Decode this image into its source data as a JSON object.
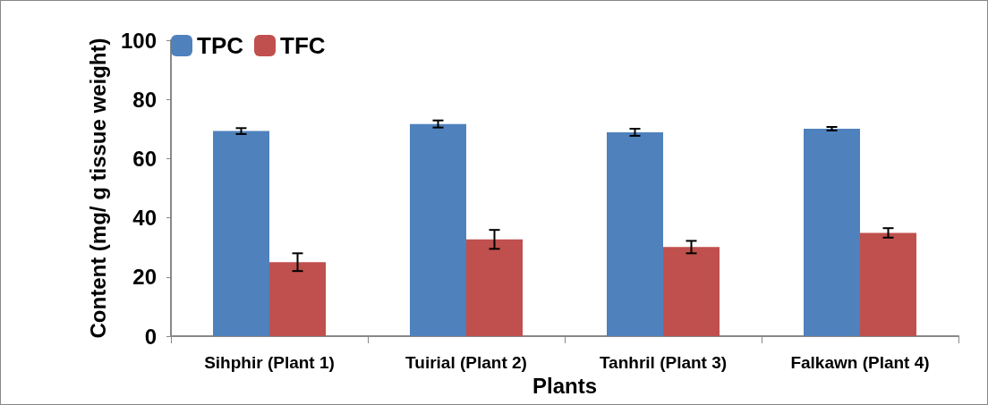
{
  "chart_data": {
    "type": "bar",
    "xlabel": "Plants",
    "ylabel": "Content (mg/ g tissue weight)",
    "categories": [
      "Sihphir (Plant 1)",
      "Tuirial (Plant 2)",
      "Tanhril (Plant 3)",
      "Falkawn (Plant 4)"
    ],
    "series": [
      {
        "name": "TPC",
        "color": "#4f81bd",
        "values": [
          69.3,
          71.7,
          68.9,
          70.1
        ],
        "errors": [
          1.0,
          1.2,
          1.2,
          0.6
        ]
      },
      {
        "name": "TFC",
        "color": "#c0504d",
        "values": [
          25.0,
          32.7,
          30.1,
          34.9
        ],
        "errors": [
          3.0,
          3.2,
          2.1,
          1.6
        ]
      }
    ],
    "ylim": [
      0,
      100
    ],
    "yticks": [
      0,
      20,
      40,
      60,
      80,
      100
    ],
    "grid": false,
    "legend": "top left"
  }
}
